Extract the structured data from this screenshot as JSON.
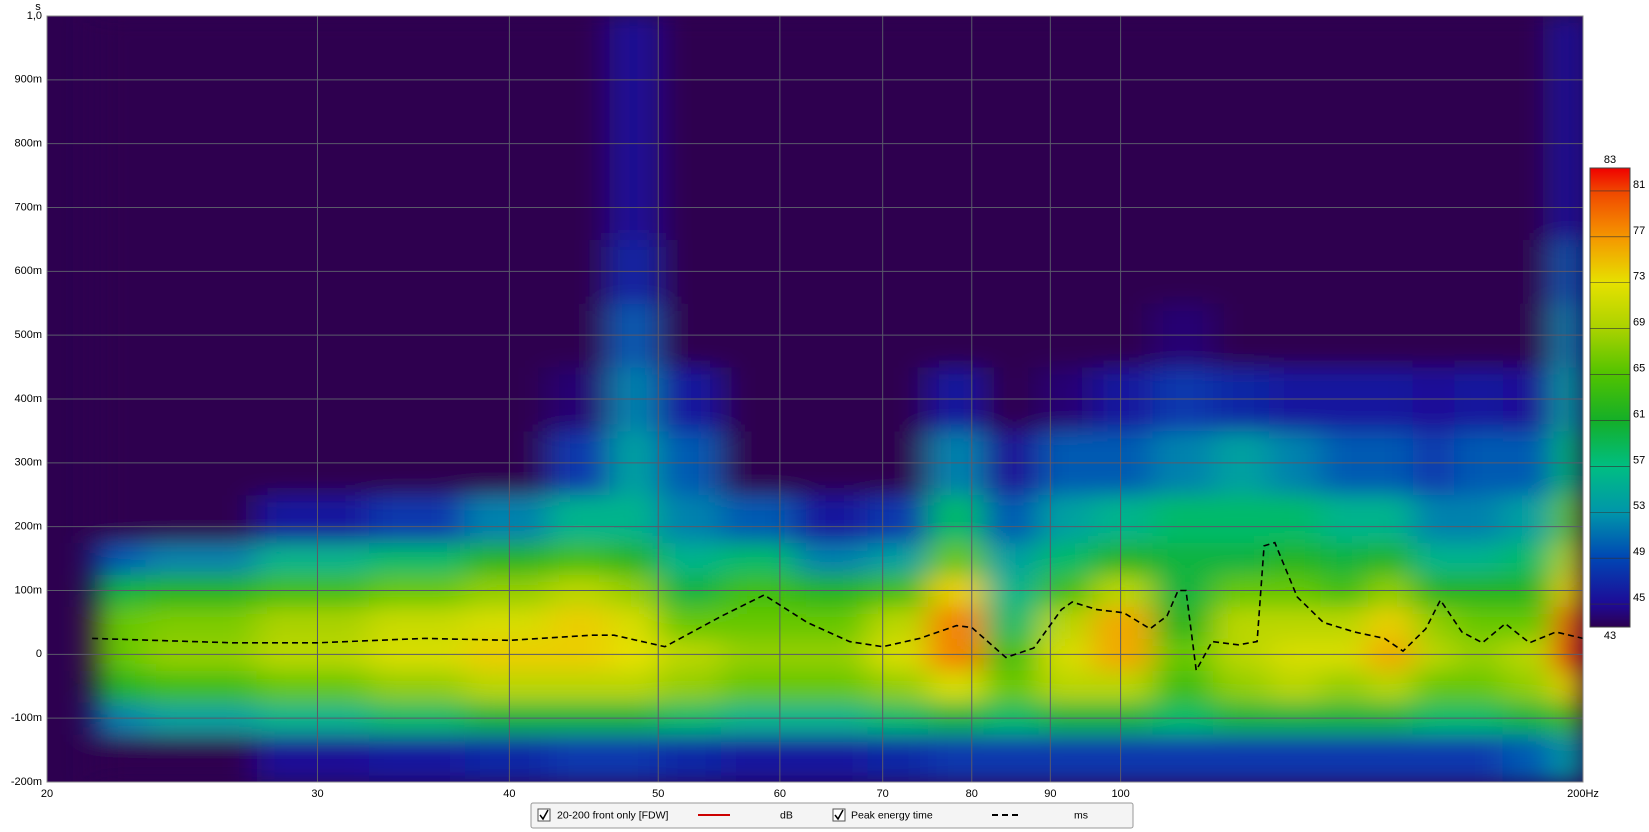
{
  "chart_data": {
    "type": "spectrogram",
    "y_unit": "s",
    "xlim": [
      20,
      200
    ],
    "xticks": [
      20,
      30,
      40,
      50,
      60,
      70,
      80,
      90,
      100,
      {
        "value": 200,
        "label": "200Hz"
      }
    ],
    "ylim": [
      -0.2,
      1.0
    ],
    "yticks": [
      {
        "value": -0.2,
        "label": "-200m"
      },
      {
        "value": -0.1,
        "label": "-100m"
      },
      0,
      {
        "value": 0.1,
        "label": "100m"
      },
      {
        "value": 0.2,
        "label": "200m"
      },
      {
        "value": 0.3,
        "label": "300m"
      },
      {
        "value": 0.4,
        "label": "400m"
      },
      {
        "value": 0.5,
        "label": "500m"
      },
      {
        "value": 0.6,
        "label": "600m"
      },
      {
        "value": 0.7,
        "label": "700m"
      },
      {
        "value": 0.8,
        "label": "800m"
      },
      {
        "value": 0.9,
        "label": "900m"
      },
      {
        "value": 1.0,
        "label": "1,0"
      }
    ],
    "log_x": true,
    "grid": true,
    "zlim": [
      43,
      83
    ],
    "zticks": [
      43,
      45,
      49,
      53,
      57,
      61,
      65,
      69,
      73,
      77,
      81,
      83
    ],
    "heatmap": {
      "name": "20-200 front only [FDW]",
      "unit": "dB",
      "color": "#cc0000",
      "freqs": [
        21.5,
        25,
        30,
        35,
        40,
        45,
        48,
        52,
        58,
        65,
        72,
        78,
        85,
        92,
        100,
        110,
        120,
        130,
        140,
        150,
        160,
        170,
        185,
        198
      ],
      "times": [
        -0.15,
        -0.1,
        -0.05,
        0,
        0.05,
        0.1,
        0.15,
        0.2,
        0.3,
        0.4,
        0.5,
        0.6,
        0.7
      ],
      "z": [
        [
          43,
          52,
          62,
          66,
          66,
          60,
          50,
          43,
          43,
          43,
          43,
          43,
          43
        ],
        [
          43,
          54,
          64,
          68,
          67,
          62,
          52,
          43,
          43,
          43,
          43,
          43,
          43
        ],
        [
          45,
          56,
          66,
          70,
          69,
          64,
          56,
          46,
          43,
          43,
          43,
          43,
          43
        ],
        [
          46,
          58,
          68,
          72,
          71,
          66,
          58,
          48,
          43,
          43,
          43,
          43,
          43
        ],
        [
          47,
          60,
          70,
          74,
          72,
          68,
          62,
          52,
          43,
          43,
          43,
          43,
          43
        ],
        [
          48,
          60,
          70,
          74,
          74,
          70,
          64,
          56,
          48,
          44,
          43,
          43,
          43
        ],
        [
          48,
          60,
          70,
          73,
          72,
          68,
          62,
          56,
          54,
          52,
          50,
          47,
          45
        ],
        [
          47,
          58,
          68,
          70,
          66,
          60,
          56,
          52,
          50,
          46,
          43,
          43,
          43
        ],
        [
          46,
          56,
          66,
          68,
          66,
          64,
          58,
          50,
          43,
          43,
          43,
          43,
          43
        ],
        [
          46,
          56,
          66,
          68,
          66,
          62,
          52,
          46,
          43,
          43,
          43,
          43,
          43
        ],
        [
          47,
          58,
          68,
          72,
          70,
          64,
          54,
          48,
          43,
          43,
          43,
          43,
          43
        ],
        [
          48,
          60,
          72,
          78,
          78,
          74,
          66,
          58,
          52,
          46,
          43,
          43,
          43
        ],
        [
          48,
          58,
          66,
          64,
          58,
          56,
          54,
          50,
          45,
          43,
          43,
          43,
          43
        ],
        [
          48,
          60,
          70,
          72,
          70,
          64,
          58,
          54,
          50,
          44,
          43,
          43,
          43
        ],
        [
          48,
          60,
          70,
          76,
          76,
          70,
          62,
          56,
          50,
          46,
          43,
          43,
          43
        ],
        [
          48,
          58,
          64,
          66,
          62,
          60,
          60,
          58,
          52,
          48,
          44,
          43,
          43
        ],
        [
          48,
          60,
          68,
          70,
          70,
          66,
          60,
          58,
          54,
          47,
          43,
          43,
          43
        ],
        [
          48,
          60,
          70,
          72,
          70,
          66,
          62,
          58,
          52,
          46,
          43,
          43,
          43
        ],
        [
          48,
          60,
          68,
          72,
          70,
          64,
          60,
          56,
          50,
          46,
          43,
          43,
          43
        ],
        [
          48,
          60,
          70,
          76,
          74,
          68,
          62,
          56,
          50,
          46,
          43,
          43,
          43
        ],
        [
          48,
          58,
          66,
          70,
          68,
          62,
          56,
          52,
          48,
          45,
          43,
          43,
          43
        ],
        [
          48,
          58,
          66,
          68,
          66,
          62,
          56,
          52,
          50,
          46,
          43,
          43,
          43
        ],
        [
          50,
          60,
          68,
          70,
          66,
          62,
          58,
          54,
          50,
          45,
          43,
          43,
          43
        ],
        [
          54,
          64,
          74,
          82,
          80,
          74,
          70,
          66,
          58,
          54,
          52,
          50,
          46
        ]
      ]
    },
    "series": [
      {
        "name": "Peak energy time",
        "unit": "ms",
        "color": "#000000",
        "dashed": true,
        "x": [
          21.4,
          26.4,
          30,
          35.2,
          40,
          45.3,
          46.8,
          50.5,
          55,
          58.6,
          62.5,
          66.6,
          70,
          74,
          78.2,
          80,
          84.2,
          87.8,
          91.5,
          93,
          96.5,
          100.5,
          104.5,
          107.2,
          109,
          110.3,
          112,
          114.7,
          119.3,
          122.7,
          124,
          126,
          130.3,
          135.5,
          142,
          148.5,
          152.7,
          158,
          161.5,
          166.8,
          172,
          178,
          184.6,
          192,
          200
        ],
        "values": [
          0.025,
          0.018,
          0.018,
          0.025,
          0.022,
          0.03,
          0.03,
          0.012,
          0.06,
          0.093,
          0.05,
          0.02,
          0.012,
          0.025,
          0.045,
          0.042,
          -0.005,
          0.01,
          0.07,
          0.082,
          0.07,
          0.065,
          0.04,
          0.06,
          0.1,
          0.1,
          -0.025,
          0.02,
          0.015,
          0.02,
          0.17,
          0.175,
          0.09,
          0.05,
          0.035,
          0.025,
          0.005,
          0.04,
          0.085,
          0.035,
          0.018,
          0.048,
          0.018,
          0.035,
          0.025
        ]
      }
    ]
  }
}
